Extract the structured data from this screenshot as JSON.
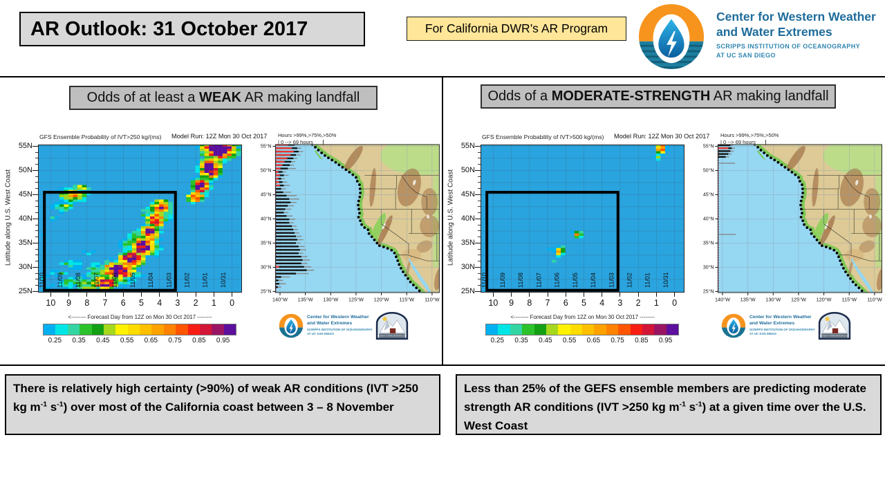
{
  "header": {
    "title": "AR Outlook: 31 October 2017",
    "program_badge": "For California DWR’s AR Program"
  },
  "branding": {
    "org_line1": "Center for Western Weather",
    "org_line2": "and Water Extremes",
    "org_sub1": "SCRIPPS INSTITUTION OF OCEANOGRAPHY",
    "org_sub2": "AT UC SAN DIEGO",
    "badge_label": "PLYMOUTH STATE METEOROLOGY"
  },
  "colors": {
    "heatmap_bg": "#2aa4df",
    "ocean": "#96d7f2",
    "land": "#ddca96",
    "coast_green": "#7ec855",
    "valley_green": "#8cd05a",
    "plains_green": "#b7df88",
    "mountain_brown": "#a87a4d",
    "desert_tan": "#d9b77f",
    "bar_gray": "#888888",
    "bar_black": "#141414",
    "bar_red": "#e8362e",
    "accent_blue": "#1e6c9b",
    "badge_yellow": "#ffe699",
    "heading_gray": "#bfbfbf",
    "caption_gray": "#d9d9d9",
    "logo_orange": "#f7941e",
    "logo_teal": "#1e7f9f",
    "colorbar": [
      "#00b0f0",
      "#00e6e6",
      "#33d6a3",
      "#2cc22c",
      "#14a014",
      "#a6d81e",
      "#fef200",
      "#ffdc00",
      "#ffc000",
      "#ffa200",
      "#ff8200",
      "#ff5500",
      "#f81e14",
      "#d31538",
      "#9a1464",
      "#5d0f9e"
    ]
  },
  "panels": [
    {
      "id": "weak",
      "heading": [
        {
          "t": "Odds of at least a "
        },
        {
          "t": "WEAK",
          "b": true
        },
        {
          "t": " AR making landfall"
        }
      ],
      "caption": [
        {
          "t": "There is relatively high certainty (>90%) of weak AR conditions (IVT >250 kg m"
        },
        {
          "t": "-1",
          "sup": true
        },
        {
          "t": " s"
        },
        {
          "t": "-1",
          "sup": true
        },
        {
          "t": ") over most of the California coast between 3 – 8 November"
        }
      ]
    },
    {
      "id": "moderate",
      "heading": [
        {
          "t": "Odds of a "
        },
        {
          "t": "MODERATE-STRENGTH",
          "b": true
        },
        {
          "t": " AR making landfall"
        }
      ],
      "caption": [
        {
          "t": "Less than 25% of the GEFS ensemble members are predicting moderate strength AR conditions (IVT >250 kg m"
        },
        {
          "t": "-1",
          "sup": true
        },
        {
          "t": " s"
        },
        {
          "t": "-1",
          "sup": true
        },
        {
          "t": ") at a given time over the U.S. West Coast"
        }
      ]
    }
  ],
  "chart_data": [
    {
      "type": "heatmap",
      "panel": "weak",
      "title": "GFS Ensemble Probability of IVT>250 kg/(ms)",
      "subtitle": "Model Run: 12Z Mon 30 Oct 2017",
      "xlabel": "<-------- Forecast Day from 12Z on Mon 30 Oct 2017 --------",
      "ylabel": "Latitude along U.S. West Coast",
      "x_ticks": [
        "10",
        "9",
        "8",
        "7",
        "6",
        "5",
        "4",
        "3",
        "2",
        "1",
        "0"
      ],
      "y_ticks": [
        "55N",
        "50N",
        "45N",
        "40N",
        "35N",
        "30N",
        "25N"
      ],
      "xlim": [
        10.7,
        -0.55
      ],
      "ylim": [
        24.78,
        55.35
      ],
      "grid": true,
      "date_labels": [
        "11/10",
        "11/09",
        "11/08",
        "11/07",
        "11/06",
        "11/05",
        "11/04",
        "11/03",
        "11/02",
        "11/01",
        "10/31"
      ],
      "highlight_box": {
        "day_from": 10.35,
        "day_to": 3.12,
        "lat_from": 25.25,
        "lat_to": 45.5
      },
      "colorbar_ticks": [
        "0.25",
        "0.35",
        "0.45",
        "0.55",
        "0.65",
        "0.75",
        "0.85",
        "0.95"
      ],
      "prob_bin_start": 0.2,
      "prob_bin_width": 0.05,
      "seed": 7,
      "blobs": [
        [
          0.7,
          54.5,
          1.0,
          2.3,
          1.3
        ],
        [
          1.2,
          50.5,
          0.6,
          2.3,
          1.25
        ],
        [
          1.7,
          46.8,
          0.5,
          1.8,
          1.1
        ],
        [
          2.0,
          44.5,
          0.55,
          1.2,
          0.95
        ],
        [
          7.0,
          26.8,
          0.85,
          1.6,
          0.9
        ],
        [
          6.3,
          29.3,
          0.95,
          1.8,
          1.25
        ],
        [
          5.55,
          31.8,
          0.75,
          1.8,
          1.05
        ],
        [
          4.95,
          34.3,
          0.65,
          2.0,
          1.25
        ],
        [
          4.55,
          37.0,
          0.6,
          1.9,
          1.0
        ],
        [
          4.2,
          39.8,
          0.55,
          1.9,
          1.0
        ],
        [
          3.9,
          42.5,
          0.65,
          1.6,
          0.9
        ],
        [
          6.5,
          28.8,
          1.9,
          3.2,
          0.52
        ],
        [
          5.0,
          34.5,
          1.3,
          3.6,
          0.52
        ],
        [
          4.15,
          41.0,
          1.1,
          2.6,
          0.48
        ],
        [
          7.5,
          26.2,
          1.7,
          1.7,
          0.5
        ],
        [
          8.6,
          26.8,
          1.5,
          1.8,
          0.36
        ],
        [
          9.5,
          28.7,
          0.8,
          1.3,
          0.3
        ],
        [
          8.9,
          30.6,
          1.1,
          1.6,
          0.3
        ],
        [
          9.9,
          25.9,
          0.7,
          1.0,
          0.28
        ],
        [
          10.4,
          28.0,
          0.5,
          1.1,
          0.26
        ],
        [
          8.8,
          44.8,
          1.0,
          1.9,
          0.6
        ],
        [
          9.25,
          42.4,
          0.85,
          1.5,
          0.42
        ],
        [
          8.35,
          46.4,
          0.7,
          1.1,
          0.45
        ],
        [
          9.9,
          40.3,
          0.5,
          1.0,
          0.27
        ],
        [
          10.35,
          36.8,
          0.4,
          0.9,
          0.26
        ],
        [
          7.9,
          33.0,
          0.5,
          0.9,
          0.27
        ]
      ]
    },
    {
      "type": "coastal_bars",
      "panel": "weak",
      "title_line1": "Hours >99%,>75%,>50%",
      "title_line2": "| 0 --> 69 hours",
      "hours_max": 69,
      "x_ticks": [
        "140°W",
        "135°W",
        "130°W",
        "125°W",
        "120°W",
        "115°W",
        "110°W"
      ],
      "y_ticks": [
        "55°N",
        "50°N",
        "45°N",
        "40°N",
        "35°N",
        "30°N",
        "25°N"
      ],
      "bars": [
        [
          55.3,
          35,
          28,
          18
        ],
        [
          54.6,
          38,
          32,
          24
        ],
        [
          53.9,
          41,
          34,
          27
        ],
        [
          53.2,
          37,
          30,
          22
        ],
        [
          52.5,
          32,
          26,
          17
        ],
        [
          51.8,
          29,
          23,
          13
        ],
        [
          51.1,
          27,
          21,
          10
        ],
        [
          50.4,
          30,
          18,
          7
        ],
        [
          49.7,
          15,
          10,
          4
        ],
        [
          49.0,
          19,
          12,
          6
        ],
        [
          48.3,
          13,
          8,
          4
        ],
        [
          47.6,
          17,
          10,
          5
        ],
        [
          46.9,
          21,
          12,
          6
        ],
        [
          46.2,
          15,
          8,
          0
        ],
        [
          45.5,
          23,
          11,
          0
        ],
        [
          44.8,
          31,
          16,
          0
        ],
        [
          44.1,
          35,
          20,
          0
        ],
        [
          43.4,
          31,
          22,
          0
        ],
        [
          42.7,
          27,
          18,
          0
        ],
        [
          42.0,
          23,
          14,
          0
        ],
        [
          41.3,
          19,
          12,
          0
        ],
        [
          40.6,
          25,
          16,
          0
        ],
        [
          39.9,
          29,
          20,
          0
        ],
        [
          39.2,
          27,
          20,
          0
        ],
        [
          38.5,
          31,
          24,
          0
        ],
        [
          37.8,
          33,
          26,
          0
        ],
        [
          37.1,
          35,
          28,
          0
        ],
        [
          36.4,
          39,
          30,
          0
        ],
        [
          35.7,
          41,
          32,
          0
        ],
        [
          35.0,
          37,
          30,
          0
        ],
        [
          34.3,
          43,
          34,
          0
        ],
        [
          33.6,
          45,
          36,
          0
        ],
        [
          32.9,
          41,
          34,
          0
        ],
        [
          32.2,
          47,
          38,
          0
        ],
        [
          31.5,
          51,
          40,
          0
        ],
        [
          30.8,
          47,
          38,
          0
        ],
        [
          30.1,
          53,
          42,
          5
        ],
        [
          29.4,
          57,
          46,
          0
        ],
        [
          28.7,
          49,
          30,
          0
        ],
        [
          28.0,
          21,
          8,
          0
        ],
        [
          27.3,
          11,
          4,
          0
        ],
        [
          26.6,
          15,
          5,
          0
        ],
        [
          25.9,
          8,
          3,
          0
        ]
      ]
    },
    {
      "type": "heatmap",
      "panel": "moderate",
      "title": "GFS Ensemble Probability of IVT>500 kg/(ms)",
      "subtitle": "Model Run: 12Z Mon 30 Oct 2017",
      "xlabel": "<-------- Forecast Day from 12Z on Mon 30 Oct 2017 --------",
      "ylabel": "Latitude along U.S. West Coast",
      "x_ticks": [
        "10",
        "9",
        "8",
        "7",
        "6",
        "5",
        "4",
        "3",
        "2",
        "1",
        "0"
      ],
      "y_ticks": [
        "55N",
        "50N",
        "45N",
        "40N",
        "35N",
        "30N",
        "25N"
      ],
      "xlim": [
        10.7,
        -0.55
      ],
      "ylim": [
        24.78,
        55.35
      ],
      "grid": true,
      "date_labels": [
        "11/10",
        "11/09",
        "11/08",
        "11/07",
        "11/06",
        "11/05",
        "11/04",
        "11/03",
        "11/02",
        "11/01",
        "10/31"
      ],
      "highlight_box": {
        "day_from": 10.35,
        "day_to": 3.12,
        "lat_from": 25.25,
        "lat_to": 45.5
      },
      "colorbar_ticks": [
        "0.25",
        "0.35",
        "0.45",
        "0.55",
        "0.65",
        "0.75",
        "0.85",
        "0.95"
      ],
      "prob_bin_start": 0.2,
      "prob_bin_width": 0.05,
      "seed": 13,
      "blobs": [
        [
          0.75,
          54.6,
          0.3,
          1.4,
          1.0
        ],
        [
          0.95,
          52.8,
          0.22,
          0.7,
          0.55
        ],
        [
          5.3,
          36.9,
          0.42,
          0.9,
          0.62
        ],
        [
          6.3,
          33.3,
          0.42,
          1.3,
          0.58
        ],
        [
          6.1,
          35.4,
          0.2,
          0.45,
          0.3
        ],
        [
          6.6,
          31.2,
          0.38,
          0.55,
          0.3
        ],
        [
          7.0,
          33.6,
          0.22,
          0.35,
          0.28
        ]
      ]
    },
    {
      "type": "coastal_bars",
      "panel": "moderate",
      "title_line1": "Hours >99%,>75%,>50%",
      "title_line2": "| 0 --> 69 hours",
      "hours_max": 69,
      "x_ticks": [
        "140°W",
        "135°W",
        "130°W",
        "125°W",
        "120°W",
        "115°W",
        "110°W"
      ],
      "y_ticks": [
        "55°N",
        "50°N",
        "45°N",
        "40°N",
        "35°N",
        "30°N",
        "25°N"
      ],
      "bars": [
        [
          55.2,
          22,
          18,
          0
        ],
        [
          54.6,
          25,
          20,
          15
        ],
        [
          54.0,
          23,
          18,
          0
        ],
        [
          53.4,
          20,
          15,
          0
        ],
        [
          52.8,
          16,
          11,
          0
        ],
        [
          51.5,
          25,
          0,
          0
        ],
        [
          36.8,
          26,
          0,
          0
        ]
      ]
    }
  ]
}
